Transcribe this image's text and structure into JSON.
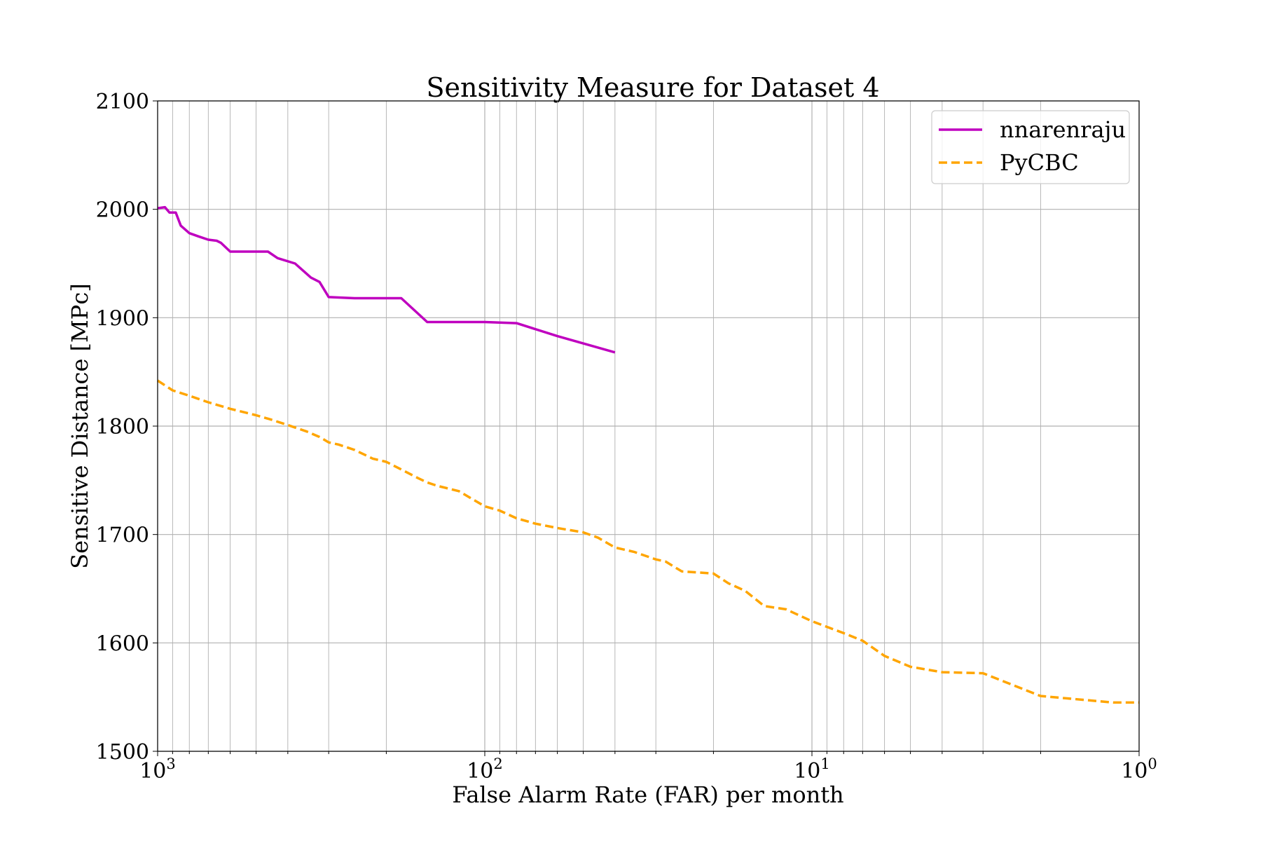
{
  "chart_data": {
    "type": "line",
    "title": "Sensitivity Measure for Dataset 4",
    "xlabel": "False Alarm Rate (FAR) per month",
    "ylabel": "Sensitive Distance [MPc]",
    "x_scale": "log",
    "x_reversed": true,
    "xlim": [
      1000,
      1
    ],
    "ylim": [
      1500,
      2100
    ],
    "grid": true,
    "legend_position": "top-right",
    "y_ticks": [
      1500,
      1600,
      1700,
      1800,
      1900,
      2000,
      2100
    ],
    "x_ticks": [
      {
        "value": 1000,
        "base": "10",
        "exp": "3"
      },
      {
        "value": 100,
        "base": "10",
        "exp": "2"
      },
      {
        "value": 10,
        "base": "10",
        "exp": "1"
      },
      {
        "value": 1,
        "base": "10",
        "exp": "0"
      }
    ],
    "series": [
      {
        "name": "nnarenraju",
        "color": "#bf00bf",
        "style": "solid",
        "x": [
          1000,
          950,
          920,
          880,
          850,
          800,
          750,
          700,
          660,
          640,
          600,
          540,
          500,
          460,
          430,
          380,
          340,
          320,
          300,
          250,
          200,
          180,
          150,
          125,
          100,
          80,
          60,
          40
        ],
        "y": [
          2001,
          2002,
          1997,
          1997,
          1985,
          1978,
          1975,
          1972,
          1971,
          1969,
          1961,
          1961,
          1961,
          1961,
          1955,
          1950,
          1937,
          1933,
          1919,
          1918,
          1918,
          1918,
          1896,
          1896,
          1896,
          1895,
          1883,
          1868
        ]
      },
      {
        "name": "PyCBC",
        "color": "#ffa500",
        "style": "dashed",
        "x": [
          1000,
          900,
          800,
          700,
          600,
          500,
          450,
          400,
          350,
          320,
          300,
          280,
          250,
          220,
          200,
          180,
          160,
          150,
          140,
          120,
          100,
          90,
          80,
          70,
          60,
          50,
          45,
          40,
          35,
          30,
          28,
          25,
          20,
          18,
          16,
          14,
          12,
          10,
          8,
          7,
          6,
          5,
          4,
          3,
          2,
          1.2,
          1
        ],
        "y": [
          1842,
          1833,
          1828,
          1822,
          1816,
          1810,
          1806,
          1801,
          1795,
          1790,
          1785,
          1783,
          1778,
          1770,
          1767,
          1760,
          1752,
          1748,
          1745,
          1740,
          1726,
          1722,
          1715,
          1710,
          1706,
          1702,
          1697,
          1688,
          1684,
          1677,
          1675,
          1666,
          1664,
          1655,
          1648,
          1634,
          1631,
          1620,
          1609,
          1602,
          1588,
          1578,
          1573,
          1572,
          1551,
          1545,
          1545
        ]
      }
    ]
  }
}
